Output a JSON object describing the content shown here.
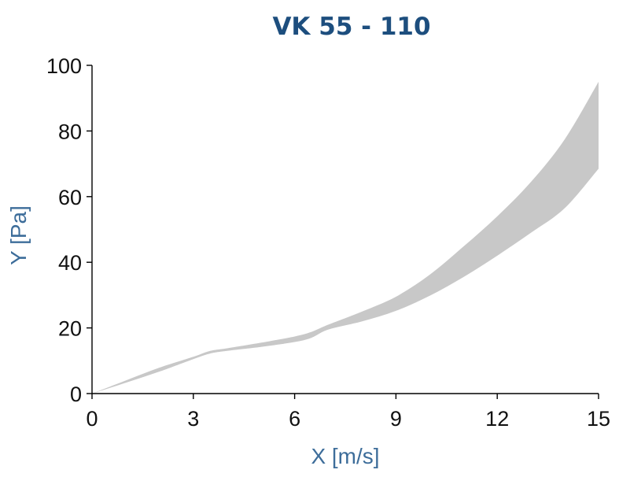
{
  "chart_data": {
    "type": "area",
    "title": "VK 55 - 110",
    "xlabel": "X [m/s]",
    "ylabel": "Y [Pa]",
    "xlim": [
      0,
      15
    ],
    "ylim": [
      0,
      100
    ],
    "xticks": [
      "0",
      "3",
      "6",
      "9",
      "12",
      "15"
    ],
    "yticks": [
      "0",
      "20",
      "40",
      "60",
      "80",
      "100"
    ],
    "grid": false,
    "legend": "none",
    "series": [
      {
        "x": [
          0,
          1,
          2,
          3,
          3.5,
          4,
          5,
          6,
          6.5,
          7,
          8,
          9,
          10,
          11,
          12,
          13,
          14,
          15
        ],
        "lower": [
          0,
          3.3,
          6.7,
          10.5,
          12.2,
          13.0,
          14.2,
          15.7,
          17.0,
          19.5,
          22.0,
          25.2,
          29.8,
          35.5,
          42.0,
          49.0,
          56.5,
          68.5
        ],
        "upper": [
          0,
          4.0,
          7.9,
          11.2,
          13.0,
          13.8,
          15.5,
          17.4,
          18.8,
          21.0,
          25.0,
          29.5,
          36.2,
          44.8,
          54.0,
          64.5,
          77.5,
          95.0
        ]
      }
    ],
    "colors": {
      "band": "#c8c8c8",
      "title": "#1d4e7e",
      "axis_label": "#3d6d9a",
      "axis": "#000000",
      "tick_text": "#111111"
    }
  }
}
